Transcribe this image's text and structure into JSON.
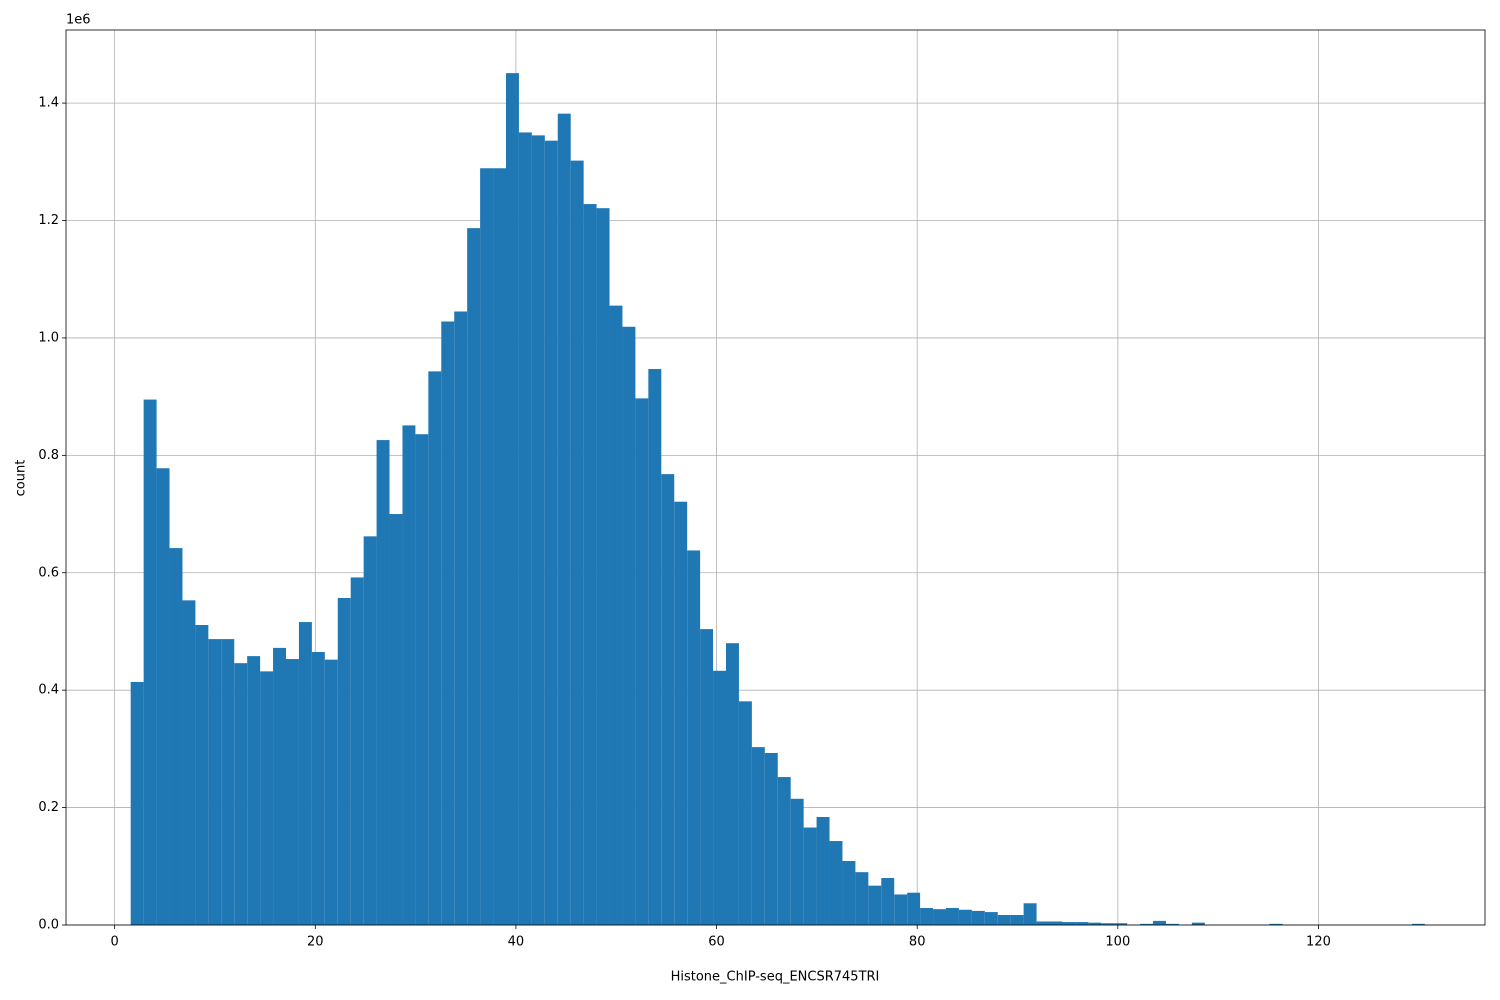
{
  "chart_data": {
    "type": "histogram",
    "xlabel": "Histone_ChIP-seq_ENCSR745TRI",
    "ylabel": "count",
    "y_offset_label": "1e6",
    "color": "#1f77b4",
    "grid": true,
    "bins": [
      1.6,
      2.89,
      4.18,
      5.47,
      6.76,
      8.05,
      9.34,
      10.63,
      11.92,
      13.21,
      14.5,
      15.79,
      17.08,
      18.37,
      19.66,
      20.95,
      22.24,
      23.53,
      24.82,
      26.11,
      27.4,
      28.69,
      29.98,
      31.27,
      32.56,
      33.85,
      35.14,
      36.43,
      37.72,
      39.01,
      40.3,
      41.59,
      42.88,
      44.17,
      45.46,
      46.75,
      48.04,
      49.33,
      50.62,
      51.91,
      53.2,
      54.49,
      55.78,
      57.07,
      58.36,
      59.65,
      60.94,
      62.23,
      63.52,
      64.81,
      66.1,
      67.39,
      68.68,
      69.97,
      71.26,
      72.55,
      73.84,
      75.13,
      76.42,
      77.71,
      79,
      80.29,
      81.58,
      82.87,
      84.16,
      85.45,
      86.74,
      88.03,
      89.32,
      90.61,
      91.9,
      93.19,
      94.48,
      95.77,
      97.06,
      98.35,
      99.64,
      100.93,
      102.22,
      103.51,
      104.8,
      106.09,
      107.38,
      108.67,
      109.96,
      111.25,
      112.54,
      113.83,
      115.12,
      116.41,
      117.7,
      118.99,
      120.28,
      121.57,
      122.86,
      124.15,
      125.44,
      126.73,
      128.02,
      129.31,
      130.6
    ],
    "values": [
      0.414,
      0.895,
      0.778,
      0.642,
      0.553,
      0.511,
      0.487,
      0.487,
      0.446,
      0.458,
      0.432,
      0.472,
      0.453,
      0.516,
      0.465,
      0.452,
      0.557,
      0.592,
      0.662,
      0.826,
      0.7,
      0.851,
      0.836,
      0.943,
      1.028,
      1.045,
      1.187,
      1.289,
      1.289,
      1.451,
      1.35,
      1.345,
      1.336,
      1.382,
      1.302,
      1.228,
      1.221,
      1.055,
      1.019,
      0.897,
      0.947,
      0.768,
      0.721,
      0.638,
      0.504,
      0.433,
      0.48,
      0.381,
      0.303,
      0.293,
      0.252,
      0.215,
      0.166,
      0.184,
      0.143,
      0.109,
      0.09,
      0.067,
      0.08,
      0.052,
      0.055,
      0.029,
      0.027,
      0.029,
      0.026,
      0.024,
      0.022,
      0.017,
      0.017,
      0.037,
      0.006,
      0.006,
      0.005,
      0.005,
      0.004,
      0.003,
      0.003,
      0,
      0.002,
      0.007,
      0.002,
      0,
      0.004,
      0,
      0,
      0,
      0,
      0,
      0.002,
      0,
      0,
      0,
      0,
      0,
      0,
      0,
      0,
      0,
      0,
      0.002
    ],
    "xlim": [
      -4.85,
      136.6
    ],
    "xticks": [
      0,
      20,
      40,
      60,
      80,
      100,
      120
    ],
    "ylim": [
      0,
      1.5245
    ],
    "yticks": [
      {
        "value": 0,
        "label": "0.0"
      },
      0.2,
      0.4,
      0.6,
      0.8,
      {
        "value": 1,
        "label": "1.0"
      },
      1.2,
      1.4
    ]
  }
}
